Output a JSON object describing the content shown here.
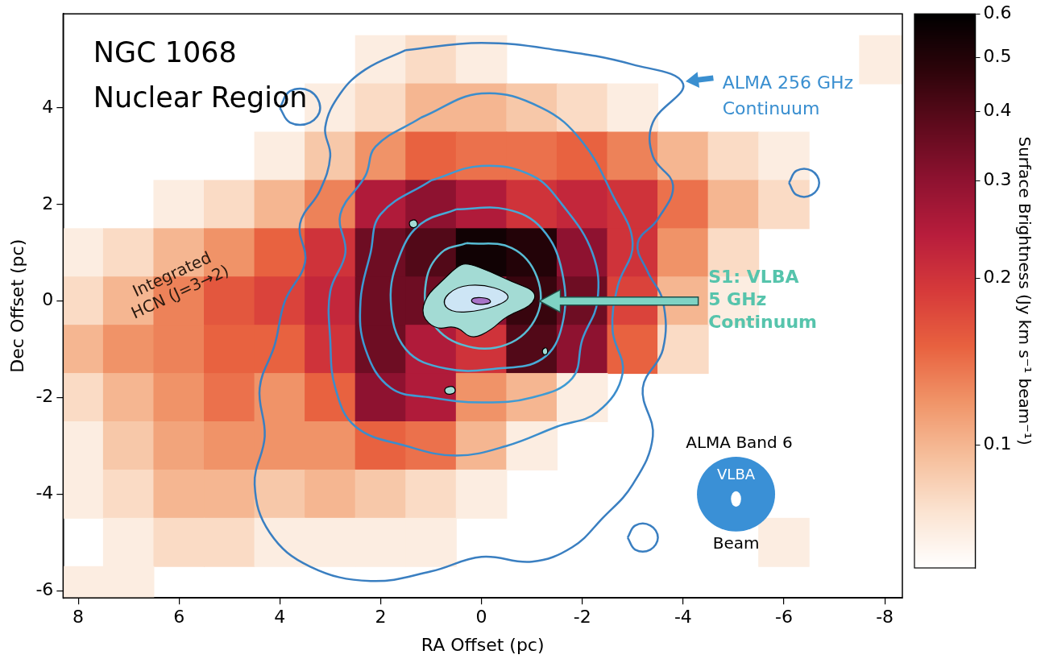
{
  "chart_data": {
    "type": "heatmap",
    "title": "NGC 1068 Nuclear Region",
    "x_label": "RA Offset (pc)",
    "y_label": "Dec Offset (pc)",
    "xlim": [
      8.3,
      -8.35
    ],
    "xticks": [
      8,
      6,
      4,
      2,
      0,
      -2,
      -4,
      -6,
      -8
    ],
    "ylim": [
      -6.15,
      5.95
    ],
    "yticks": [
      -6,
      -4,
      -2,
      0,
      2,
      4
    ],
    "grid": false,
    "cells": {
      "name": "Integrated HCN (J=3→2)",
      "x": [
        8,
        7,
        6,
        5,
        4,
        3,
        2,
        1,
        0,
        -1,
        -2,
        -3,
        -4,
        -5,
        -6,
        -7,
        -8
      ],
      "y": [
        5,
        4,
        3,
        2,
        1,
        0,
        -1,
        -2,
        -3,
        -4,
        -5,
        -6
      ],
      "values": [
        [
          null,
          null,
          null,
          null,
          null,
          null,
          0.07,
          0.08,
          0.07,
          null,
          null,
          null,
          null,
          null,
          null,
          null,
          0.07
        ],
        [
          null,
          null,
          null,
          null,
          null,
          0.07,
          0.08,
          0.1,
          0.1,
          0.09,
          0.08,
          0.07,
          null,
          null,
          null,
          null,
          null
        ],
        [
          null,
          null,
          null,
          null,
          0.07,
          0.09,
          0.12,
          0.15,
          0.14,
          0.14,
          0.15,
          0.13,
          0.1,
          0.08,
          0.07,
          null,
          null
        ],
        [
          null,
          null,
          0.07,
          0.08,
          0.1,
          0.13,
          0.25,
          0.3,
          0.25,
          0.2,
          0.22,
          0.2,
          0.14,
          0.1,
          0.08,
          null,
          null
        ],
        [
          0.07,
          0.08,
          0.1,
          0.12,
          0.15,
          0.2,
          0.35,
          0.4,
          0.55,
          0.5,
          0.3,
          0.2,
          0.12,
          0.08,
          null,
          null,
          null
        ],
        [
          0.08,
          0.1,
          0.13,
          0.16,
          0.18,
          0.22,
          0.35,
          0.35,
          0.3,
          0.45,
          0.35,
          0.18,
          0.1,
          0.07,
          null,
          null,
          null
        ],
        [
          0.1,
          0.12,
          0.13,
          0.15,
          0.15,
          0.2,
          0.35,
          0.25,
          0.2,
          0.4,
          0.3,
          0.15,
          0.08,
          null,
          null,
          null,
          null
        ],
        [
          0.08,
          0.1,
          0.12,
          0.14,
          0.12,
          0.15,
          0.3,
          0.25,
          0.12,
          0.1,
          0.07,
          null,
          null,
          null,
          null,
          null,
          null
        ],
        [
          0.07,
          0.09,
          0.11,
          0.12,
          0.12,
          0.12,
          0.15,
          0.14,
          0.1,
          0.07,
          null,
          null,
          null,
          null,
          null,
          null,
          null
        ],
        [
          0.07,
          0.08,
          0.1,
          0.1,
          0.09,
          0.1,
          0.09,
          0.08,
          0.07,
          null,
          null,
          null,
          null,
          null,
          null,
          null,
          null
        ],
        [
          null,
          0.07,
          0.08,
          0.08,
          0.07,
          0.07,
          0.07,
          0.07,
          null,
          null,
          null,
          null,
          null,
          null,
          0.07,
          null,
          null
        ],
        [
          0.07,
          0.07,
          null,
          null,
          null,
          null,
          null,
          null,
          null,
          null,
          null,
          null,
          null,
          null,
          null,
          null,
          null
        ]
      ]
    },
    "colorbar": {
      "label": "Surface Brightness (Jy km s⁻¹ beam⁻¹)",
      "range": [
        0.06,
        0.6
      ],
      "ticks": [
        0.1,
        0.2,
        0.3,
        0.4,
        0.5,
        0.6
      ],
      "log": true
    },
    "series": [
      {
        "name": "ALMA 256 GHz Continuum",
        "type": "line",
        "color": "#3a8fd0",
        "levels": [
          {
            "color": "#3a7fc1",
            "paths": [
              [
                [
                  1.5,
                  5.2
                ],
                [
                  0,
                  5.35
                ],
                [
                  -1.5,
                  5.2
                ],
                [
                  -3.0,
                  4.9
                ],
                [
                  -4.0,
                  4.5
                ],
                [
                  -3.4,
                  3.7
                ],
                [
                  -3.4,
                  3.0
                ],
                [
                  -3.8,
                  2.4
                ],
                [
                  -3.5,
                  1.7
                ],
                [
                  -3.1,
                  1.2
                ],
                [
                  -3.3,
                  0.6
                ],
                [
                  -3.6,
                  0
                ],
                [
                  -3.6,
                  -1.0
                ],
                [
                  -3.2,
                  -1.8
                ],
                [
                  -3.4,
                  -2.8
                ],
                [
                  -3.0,
                  -3.8
                ],
                [
                  -2.4,
                  -4.5
                ],
                [
                  -1.8,
                  -5.1
                ],
                [
                  -1.0,
                  -5.4
                ],
                [
                  0,
                  -5.3
                ],
                [
                  1.0,
                  -5.6
                ],
                [
                  2.2,
                  -5.8
                ],
                [
                  3.4,
                  -5.5
                ],
                [
                  4.2,
                  -4.8
                ],
                [
                  4.5,
                  -3.8
                ],
                [
                  4.3,
                  -2.8
                ],
                [
                  4.4,
                  -1.8
                ],
                [
                  4.1,
                  -0.9
                ],
                [
                  3.9,
                  0
                ],
                [
                  3.5,
                  0.8
                ],
                [
                  3.6,
                  1.6
                ],
                [
                  3.2,
                  2.3
                ],
                [
                  3.0,
                  3.0
                ],
                [
                  3.1,
                  3.6
                ],
                [
                  2.8,
                  4.3
                ],
                [
                  2.3,
                  4.8
                ]
              ],
              [
                [
                  4.0,
                  4.0
                ],
                [
                  3.8,
                  4.35
                ],
                [
                  3.4,
                  4.35
                ],
                [
                  3.2,
                  4.0
                ],
                [
                  3.4,
                  3.7
                ],
                [
                  3.8,
                  3.7
                ]
              ],
              [
                [
                  -6.1,
                  2.45
                ],
                [
                  -6.25,
                  2.7
                ],
                [
                  -6.55,
                  2.7
                ],
                [
                  -6.7,
                  2.45
                ],
                [
                  -6.55,
                  2.2
                ],
                [
                  -6.25,
                  2.2
                ]
              ],
              [
                [
                  -2.9,
                  -4.9
                ],
                [
                  -3.05,
                  -4.65
                ],
                [
                  -3.35,
                  -4.65
                ],
                [
                  -3.5,
                  -4.9
                ],
                [
                  -3.35,
                  -5.15
                ],
                [
                  -3.05,
                  -5.15
                ]
              ]
            ]
          },
          {
            "color": "#3b8dcc",
            "paths": [
              [
                [
                  1.2,
                  3.8
                ],
                [
                  0,
                  4.3
                ],
                [
                  -1.2,
                  4.0
                ],
                [
                  -2.0,
                  3.3
                ],
                [
                  -2.6,
                  2.2
                ],
                [
                  -3.0,
                  1.2
                ],
                [
                  -2.7,
                  0.3
                ],
                [
                  -2.6,
                  -0.6
                ],
                [
                  -2.8,
                  -1.5
                ],
                [
                  -2.3,
                  -2.3
                ],
                [
                  -1.5,
                  -2.6
                ],
                [
                  -0.5,
                  -3.0
                ],
                [
                  0.5,
                  -3.2
                ],
                [
                  1.5,
                  -3.0
                ],
                [
                  2.5,
                  -2.6
                ],
                [
                  2.9,
                  -1.8
                ],
                [
                  3.0,
                  -0.8
                ],
                [
                  3.0,
                  0.2
                ],
                [
                  2.7,
                  1.0
                ],
                [
                  2.8,
                  1.8
                ],
                [
                  2.3,
                  2.6
                ],
                [
                  2.1,
                  3.2
                ]
              ]
            ]
          },
          {
            "color": "#3e9bd4",
            "paths": [
              [
                [
                  1.0,
                  2.5
                ],
                [
                  0,
                  2.8
                ],
                [
                  -1.0,
                  2.6
                ],
                [
                  -1.6,
                  2.0
                ],
                [
                  -2.2,
                  1.0
                ],
                [
                  -2.3,
                  0
                ],
                [
                  -2.0,
                  -0.8
                ],
                [
                  -1.8,
                  -1.6
                ],
                [
                  -1.0,
                  -2.0
                ],
                [
                  0,
                  -2.1
                ],
                [
                  1.0,
                  -2.0
                ],
                [
                  1.8,
                  -1.8
                ],
                [
                  2.3,
                  -1.0
                ],
                [
                  2.4,
                  0
                ],
                [
                  2.2,
                  1.0
                ],
                [
                  2.0,
                  1.8
                ]
              ]
            ]
          },
          {
            "color": "#47aad6",
            "paths": [
              [
                [
                  0.5,
                  1.9
                ],
                [
                  -0.5,
                  1.9
                ],
                [
                  -1.2,
                  1.5
                ],
                [
                  -1.6,
                  0.6
                ],
                [
                  -1.6,
                  -0.5
                ],
                [
                  -1.2,
                  -1.2
                ],
                [
                  -0.3,
                  -1.4
                ],
                [
                  0.7,
                  -1.4
                ],
                [
                  1.5,
                  -1.0
                ],
                [
                  1.8,
                  0
                ],
                [
                  1.6,
                  1.0
                ],
                [
                  1.2,
                  1.6
                ]
              ]
            ]
          },
          {
            "color": "#58bcd4",
            "paths": [
              [
                [
                  0.3,
                  1.2
                ],
                [
                  -0.6,
                  1.1
                ],
                [
                  -1.1,
                  0.5
                ],
                [
                  -1.1,
                  -0.3
                ],
                [
                  -0.5,
                  -0.9
                ],
                [
                  0.4,
                  -0.9
                ],
                [
                  1.0,
                  -0.4
                ],
                [
                  1.1,
                  0.4
                ],
                [
                  0.8,
                  1.0
                ]
              ]
            ]
          }
        ]
      },
      {
        "name": "S1: VLBA 5 GHz Continuum",
        "type": "area",
        "color": "#56c4ac",
        "levels": [
          {
            "color": "#a3dbd4",
            "paths": [
              [
                [
                  0.3,
                  0.8
                ],
                [
                  -0.2,
                  0.6
                ],
                [
                  -0.6,
                  0.4
                ],
                [
                  -1.1,
                  0.2
                ],
                [
                  -1.0,
                  -0.1
                ],
                [
                  -0.5,
                  -0.3
                ],
                [
                  -0.2,
                  -0.6
                ],
                [
                  0.2,
                  -0.8
                ],
                [
                  0.5,
                  -0.5
                ],
                [
                  0.9,
                  -0.6
                ],
                [
                  1.2,
                  -0.3
                ],
                [
                  1.1,
                  0.1
                ],
                [
                  0.8,
                  0.4
                ],
                [
                  0.5,
                  0.7
                ]
              ],
              [
                [
                  1.45,
                  1.65
                ],
                [
                  1.3,
                  1.7
                ],
                [
                  1.25,
                  1.55
                ],
                [
                  1.4,
                  1.5
                ]
              ],
              [
                [
                  0.75,
                  -1.8
                ],
                [
                  0.55,
                  -1.75
                ],
                [
                  0.5,
                  -1.9
                ],
                [
                  0.7,
                  -1.95
                ]
              ],
              [
                [
                  -1.2,
                  -1.0
                ],
                [
                  -1.3,
                  -0.95
                ],
                [
                  -1.32,
                  -1.1
                ],
                [
                  -1.22,
                  -1.12
                ]
              ]
            ]
          },
          {
            "color": "#cde5f5",
            "paths": [
              [
                [
                  0.5,
                  0.3
                ],
                [
                  0,
                  0.35
                ],
                [
                  -0.5,
                  0.2
                ],
                [
                  -0.55,
                  0
                ],
                [
                  0,
                  -0.2
                ],
                [
                  0.6,
                  -0.25
                ],
                [
                  0.8,
                  0
                ]
              ]
            ]
          },
          {
            "color": "#a874c8",
            "paths": [
              [
                [
                  0.15,
                  0.08
                ],
                [
                  -0.15,
                  0.06
                ],
                [
                  -0.2,
                  -0.05
                ],
                [
                  0.1,
                  -0.08
                ],
                [
                  0.22,
                  0
                ]
              ]
            ]
          }
        ]
      }
    ],
    "beam": {
      "title": "ALMA Band 6",
      "caption": "Beam",
      "color": "#3a90d6",
      "alma_diameter": 1.55,
      "vlba_label": "VLBA",
      "vlba_width": 0.2,
      "vlba_height": 0.32
    }
  }
}
